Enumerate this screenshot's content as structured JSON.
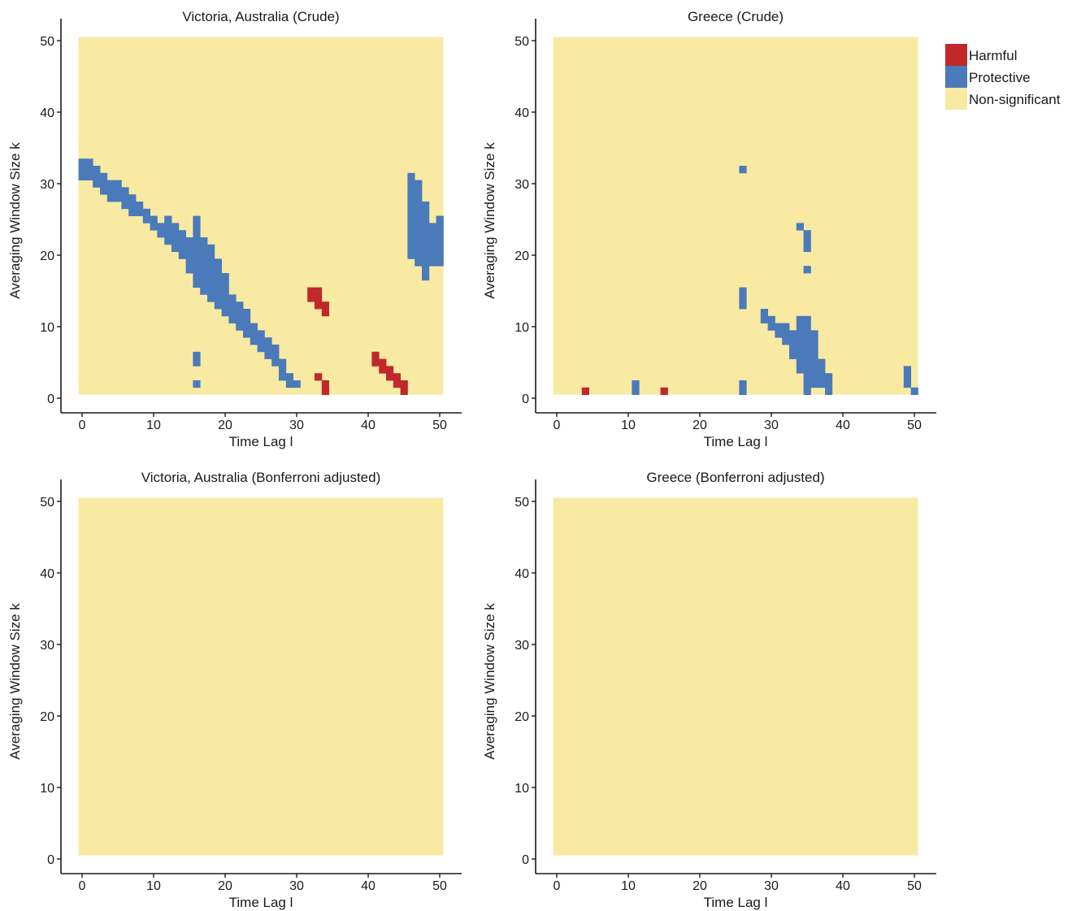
{
  "colors": {
    "harmful": "#c0282b",
    "protective": "#4a7ab9",
    "non_significant": "#f8e9a3"
  },
  "legend": {
    "items": [
      {
        "key": "harmful",
        "label": "Harmful"
      },
      {
        "key": "protective",
        "label": "Protective"
      },
      {
        "key": "non_significant",
        "label": "Non-significant"
      }
    ],
    "placement": "right"
  },
  "chart_data": [
    {
      "type": "heatmap",
      "title": "Victoria, Australia (Crude)",
      "xlabel": "Time Lag l",
      "ylabel": "Averaging Window Size k",
      "x_range": [
        0,
        50
      ],
      "y_range": [
        1,
        50
      ],
      "xticks": [
        0,
        10,
        20,
        30,
        40,
        50
      ],
      "yticks": [
        0,
        10,
        20,
        30,
        40,
        50
      ],
      "default_category": "non_significant",
      "cells": {
        "protective_runs": [
          [
            0,
            31,
            33
          ],
          [
            1,
            31,
            33
          ],
          [
            2,
            30,
            32
          ],
          [
            3,
            29,
            31
          ],
          [
            4,
            28,
            30
          ],
          [
            5,
            28,
            30
          ],
          [
            6,
            27,
            29
          ],
          [
            7,
            26,
            28
          ],
          [
            8,
            26,
            27
          ],
          [
            9,
            25,
            26
          ],
          [
            10,
            24,
            25
          ],
          [
            11,
            23,
            24
          ],
          [
            12,
            22,
            25
          ],
          [
            13,
            21,
            24
          ],
          [
            14,
            20,
            23
          ],
          [
            15,
            18,
            22
          ],
          [
            16,
            16,
            25
          ],
          [
            17,
            15,
            22
          ],
          [
            18,
            14,
            21
          ],
          [
            19,
            13,
            19
          ],
          [
            20,
            12,
            17
          ],
          [
            21,
            11,
            14
          ],
          [
            22,
            10,
            13
          ],
          [
            23,
            9,
            12
          ],
          [
            24,
            8,
            10
          ],
          [
            25,
            7,
            9
          ],
          [
            26,
            6,
            8
          ],
          [
            27,
            5,
            7
          ],
          [
            28,
            3,
            5
          ],
          [
            29,
            2,
            3
          ],
          [
            30,
            2,
            2
          ],
          [
            16,
            2,
            2
          ],
          [
            16,
            5,
            6
          ],
          [
            46,
            20,
            31
          ],
          [
            47,
            19,
            30
          ],
          [
            48,
            17,
            27
          ],
          [
            49,
            19,
            24
          ],
          [
            50,
            19,
            25
          ]
        ],
        "harmful_runs": [
          [
            32,
            14,
            15
          ],
          [
            33,
            13,
            15
          ],
          [
            34,
            12,
            13
          ],
          [
            33,
            3,
            3
          ],
          [
            34,
            1,
            2
          ],
          [
            41,
            5,
            6
          ],
          [
            42,
            4,
            5
          ],
          [
            43,
            3,
            4
          ],
          [
            44,
            2,
            3
          ],
          [
            45,
            1,
            2
          ]
        ]
      }
    },
    {
      "type": "heatmap",
      "title": "Greece (Crude)",
      "xlabel": "Time Lag l",
      "ylabel": "Averaging Window Size k",
      "x_range": [
        0,
        50
      ],
      "y_range": [
        1,
        50
      ],
      "xticks": [
        0,
        10,
        20,
        30,
        40,
        50
      ],
      "yticks": [
        0,
        10,
        20,
        30,
        40,
        50
      ],
      "default_category": "non_significant",
      "cells": {
        "protective_runs": [
          [
            11,
            1,
            2
          ],
          [
            26,
            1,
            2
          ],
          [
            26,
            13,
            15
          ],
          [
            26,
            32,
            32
          ],
          [
            29,
            11,
            12
          ],
          [
            30,
            10,
            11
          ],
          [
            31,
            9,
            10
          ],
          [
            32,
            8,
            10
          ],
          [
            33,
            6,
            9
          ],
          [
            34,
            4,
            11
          ],
          [
            35,
            1,
            11
          ],
          [
            35,
            18,
            18
          ],
          [
            35,
            21,
            23
          ],
          [
            34,
            24,
            24
          ],
          [
            36,
            2,
            9
          ],
          [
            37,
            2,
            5
          ],
          [
            38,
            1,
            3
          ],
          [
            49,
            2,
            4
          ],
          [
            50,
            1,
            1
          ]
        ],
        "harmful_runs": [
          [
            4,
            1,
            1
          ],
          [
            15,
            1,
            1
          ]
        ]
      }
    },
    {
      "type": "heatmap",
      "title": "Victoria, Australia (Bonferroni adjusted)",
      "xlabel": "Time Lag l",
      "ylabel": "Averaging Window Size k",
      "x_range": [
        0,
        50
      ],
      "y_range": [
        1,
        50
      ],
      "xticks": [
        0,
        10,
        20,
        30,
        40,
        50
      ],
      "yticks": [
        0,
        10,
        20,
        30,
        40,
        50
      ],
      "default_category": "non_significant",
      "cells": {
        "protective_runs": [],
        "harmful_runs": []
      }
    },
    {
      "type": "heatmap",
      "title": "Greece (Bonferroni adjusted)",
      "xlabel": "Time Lag l",
      "ylabel": "Averaging Window Size k",
      "x_range": [
        0,
        50
      ],
      "y_range": [
        1,
        50
      ],
      "xticks": [
        0,
        10,
        20,
        30,
        40,
        50
      ],
      "yticks": [
        0,
        10,
        20,
        30,
        40,
        50
      ],
      "default_category": "non_significant",
      "cells": {
        "protective_runs": [],
        "harmful_runs": []
      }
    }
  ]
}
